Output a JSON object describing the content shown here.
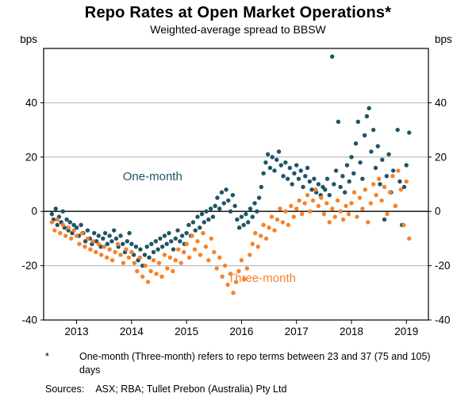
{
  "title": "Repo Rates at Open Market Operations*",
  "subtitle": "Weighted-average spread to BBSW",
  "axis_unit_left": "bps",
  "axis_unit_right": "bps",
  "footnote": {
    "marker": "*",
    "text": "One-month (Three-month) refers to repo terms between 23 and 37 (75 and 105) days",
    "sources_label": "Sources:",
    "sources": "ASX; RBA; Tullet Prebon (Australia) Pty Ltd"
  },
  "chart_data": {
    "type": "scatter",
    "title": "Repo Rates at Open Market Operations*",
    "subtitle": "Weighted-average spread to BBSW",
    "xlabel": "",
    "ylabel": "bps",
    "xlim": [
      2012.4,
      2019.4
    ],
    "ylim": [
      -40,
      60
    ],
    "xticks": [
      2013,
      2014,
      2015,
      2016,
      2017,
      2018,
      2019
    ],
    "yticks": [
      40,
      20,
      0,
      -20,
      -40
    ],
    "grid": true,
    "grid_color": "#b0b0b0",
    "zero_line_color": "#000000",
    "legend_position": "in-plot-annotations",
    "series": [
      {
        "name": "One-month",
        "color": "#1d5566",
        "annotation": {
          "x": 2013.84,
          "y": 11.5
        },
        "points": [
          [
            2012.55,
            -1
          ],
          [
            2012.58,
            -3
          ],
          [
            2012.62,
            1
          ],
          [
            2012.65,
            -5
          ],
          [
            2012.68,
            -2
          ],
          [
            2012.72,
            -4
          ],
          [
            2012.75,
            0
          ],
          [
            2012.78,
            -6
          ],
          [
            2012.82,
            -3
          ],
          [
            2012.85,
            -7
          ],
          [
            2012.88,
            -4
          ],
          [
            2012.92,
            -8
          ],
          [
            2012.95,
            -5
          ],
          [
            2013.0,
            -6
          ],
          [
            2013.04,
            -9
          ],
          [
            2013.08,
            -5
          ],
          [
            2013.12,
            -8
          ],
          [
            2013.16,
            -11
          ],
          [
            2013.2,
            -7
          ],
          [
            2013.24,
            -10
          ],
          [
            2013.28,
            -12
          ],
          [
            2013.32,
            -8
          ],
          [
            2013.36,
            -11
          ],
          [
            2013.4,
            -9
          ],
          [
            2013.44,
            -13
          ],
          [
            2013.48,
            -10
          ],
          [
            2013.52,
            -8
          ],
          [
            2013.56,
            -12
          ],
          [
            2013.6,
            -9
          ],
          [
            2013.64,
            -11
          ],
          [
            2013.68,
            -7
          ],
          [
            2013.72,
            -10
          ],
          [
            2013.76,
            -13
          ],
          [
            2013.8,
            -9
          ],
          [
            2013.84,
            -12
          ],
          [
            2013.88,
            -15
          ],
          [
            2013.92,
            -11
          ],
          [
            2013.96,
            -8
          ],
          [
            2014.0,
            -12
          ],
          [
            2014.04,
            -16
          ],
          [
            2014.08,
            -13
          ],
          [
            2014.12,
            -18
          ],
          [
            2014.16,
            -14
          ],
          [
            2014.2,
            -20
          ],
          [
            2014.24,
            -16
          ],
          [
            2014.28,
            -13
          ],
          [
            2014.32,
            -17
          ],
          [
            2014.36,
            -12
          ],
          [
            2014.4,
            -15
          ],
          [
            2014.44,
            -11
          ],
          [
            2014.48,
            -14
          ],
          [
            2014.52,
            -10
          ],
          [
            2014.56,
            -13
          ],
          [
            2014.6,
            -9
          ],
          [
            2014.64,
            -12
          ],
          [
            2014.68,
            -8
          ],
          [
            2014.72,
            -11
          ],
          [
            2014.76,
            -14
          ],
          [
            2014.8,
            -10
          ],
          [
            2014.84,
            -7
          ],
          [
            2014.88,
            -11
          ],
          [
            2014.92,
            -9
          ],
          [
            2014.96,
            -12
          ],
          [
            2015.0,
            -8
          ],
          [
            2015.04,
            -5
          ],
          [
            2015.08,
            -9
          ],
          [
            2015.12,
            -4
          ],
          [
            2015.16,
            -7
          ],
          [
            2015.2,
            -2
          ],
          [
            2015.24,
            -6
          ],
          [
            2015.28,
            -1
          ],
          [
            2015.32,
            -4
          ],
          [
            2015.36,
            0
          ],
          [
            2015.4,
            -3
          ],
          [
            2015.44,
            1
          ],
          [
            2015.48,
            -2
          ],
          [
            2015.52,
            2
          ],
          [
            2015.56,
            5
          ],
          [
            2015.6,
            1
          ],
          [
            2015.64,
            7
          ],
          [
            2015.68,
            3
          ],
          [
            2015.72,
            8
          ],
          [
            2015.76,
            4
          ],
          [
            2015.8,
            0
          ],
          [
            2015.84,
            6
          ],
          [
            2015.88,
            2
          ],
          [
            2015.92,
            -3
          ],
          [
            2015.96,
            -6
          ],
          [
            2016.0,
            -2
          ],
          [
            2016.04,
            -5
          ],
          [
            2016.08,
            -1
          ],
          [
            2016.12,
            -4
          ],
          [
            2016.16,
            1
          ],
          [
            2016.2,
            -2
          ],
          [
            2016.24,
            3
          ],
          [
            2016.28,
            0
          ],
          [
            2016.32,
            5
          ],
          [
            2016.36,
            9
          ],
          [
            2016.4,
            14
          ],
          [
            2016.44,
            18
          ],
          [
            2016.48,
            21
          ],
          [
            2016.52,
            16
          ],
          [
            2016.56,
            20
          ],
          [
            2016.6,
            15
          ],
          [
            2016.64,
            19
          ],
          [
            2016.68,
            22
          ],
          [
            2016.72,
            17
          ],
          [
            2016.76,
            13
          ],
          [
            2016.8,
            18
          ],
          [
            2016.84,
            12
          ],
          [
            2016.88,
            16
          ],
          [
            2016.92,
            10
          ],
          [
            2016.96,
            14
          ],
          [
            2017.0,
            17
          ],
          [
            2017.04,
            12
          ],
          [
            2017.08,
            15
          ],
          [
            2017.12,
            9
          ],
          [
            2017.16,
            13
          ],
          [
            2017.2,
            16
          ],
          [
            2017.24,
            11
          ],
          [
            2017.28,
            8
          ],
          [
            2017.32,
            12
          ],
          [
            2017.36,
            7
          ],
          [
            2017.4,
            10
          ],
          [
            2017.44,
            6
          ],
          [
            2017.48,
            9
          ],
          [
            2017.52,
            8
          ],
          [
            2017.56,
            12
          ],
          [
            2017.6,
            6
          ],
          [
            2017.65,
            57
          ],
          [
            2017.68,
            10
          ],
          [
            2017.72,
            15
          ],
          [
            2017.76,
            33
          ],
          [
            2017.8,
            9
          ],
          [
            2017.84,
            13
          ],
          [
            2017.88,
            7
          ],
          [
            2017.92,
            17
          ],
          [
            2017.96,
            11
          ],
          [
            2018.0,
            20
          ],
          [
            2018.04,
            14
          ],
          [
            2018.08,
            25
          ],
          [
            2018.12,
            33
          ],
          [
            2018.16,
            18
          ],
          [
            2018.2,
            12
          ],
          [
            2018.24,
            28
          ],
          [
            2018.28,
            35
          ],
          [
            2018.32,
            38
          ],
          [
            2018.36,
            22
          ],
          [
            2018.4,
            30
          ],
          [
            2018.44,
            16
          ],
          [
            2018.48,
            24
          ],
          [
            2018.52,
            10
          ],
          [
            2018.56,
            19
          ],
          [
            2018.6,
            -3
          ],
          [
            2018.64,
            13
          ],
          [
            2018.68,
            21
          ],
          [
            2018.72,
            7
          ],
          [
            2018.76,
            15
          ],
          [
            2018.8,
            2
          ],
          [
            2018.84,
            30
          ],
          [
            2018.88,
            11
          ],
          [
            2018.92,
            -5
          ],
          [
            2018.96,
            9
          ],
          [
            2019.0,
            17
          ],
          [
            2019.05,
            29
          ]
        ]
      },
      {
        "name": "Three-month",
        "color": "#f6822a",
        "annotation": {
          "x": 2015.75,
          "y": -26
        },
        "points": [
          [
            2012.55,
            -4
          ],
          [
            2012.6,
            -7
          ],
          [
            2012.65,
            -3
          ],
          [
            2012.7,
            -8
          ],
          [
            2012.75,
            -5
          ],
          [
            2012.8,
            -9
          ],
          [
            2012.85,
            -6
          ],
          [
            2012.9,
            -10
          ],
          [
            2012.95,
            -7
          ],
          [
            2013.0,
            -9
          ],
          [
            2013.05,
            -12
          ],
          [
            2013.1,
            -8
          ],
          [
            2013.15,
            -13
          ],
          [
            2013.2,
            -10
          ],
          [
            2013.25,
            -14
          ],
          [
            2013.3,
            -11
          ],
          [
            2013.35,
            -15
          ],
          [
            2013.4,
            -12
          ],
          [
            2013.45,
            -16
          ],
          [
            2013.5,
            -13
          ],
          [
            2013.55,
            -17
          ],
          [
            2013.6,
            -14
          ],
          [
            2013.65,
            -18
          ],
          [
            2013.7,
            -15
          ],
          [
            2013.75,
            -12
          ],
          [
            2013.8,
            -16
          ],
          [
            2013.85,
            -19
          ],
          [
            2013.9,
            -14
          ],
          [
            2013.95,
            -17
          ],
          [
            2014.0,
            -15
          ],
          [
            2014.05,
            -19
          ],
          [
            2014.1,
            -22
          ],
          [
            2014.15,
            -17
          ],
          [
            2014.2,
            -24
          ],
          [
            2014.25,
            -20
          ],
          [
            2014.3,
            -26
          ],
          [
            2014.35,
            -22
          ],
          [
            2014.4,
            -18
          ],
          [
            2014.45,
            -23
          ],
          [
            2014.5,
            -19
          ],
          [
            2014.55,
            -24
          ],
          [
            2014.6,
            -16
          ],
          [
            2014.65,
            -21
          ],
          [
            2014.7,
            -17
          ],
          [
            2014.75,
            -22
          ],
          [
            2014.8,
            -18
          ],
          [
            2014.85,
            -14
          ],
          [
            2014.9,
            -19
          ],
          [
            2014.95,
            -15
          ],
          [
            2015.0,
            -12
          ],
          [
            2015.05,
            -17
          ],
          [
            2015.1,
            -9
          ],
          [
            2015.15,
            -14
          ],
          [
            2015.2,
            -11
          ],
          [
            2015.25,
            -16
          ],
          [
            2015.3,
            -8
          ],
          [
            2015.35,
            -13
          ],
          [
            2015.4,
            -18
          ],
          [
            2015.45,
            -10
          ],
          [
            2015.5,
            -15
          ],
          [
            2015.55,
            -21
          ],
          [
            2015.6,
            -17
          ],
          [
            2015.65,
            -24
          ],
          [
            2015.7,
            -20
          ],
          [
            2015.75,
            -27
          ],
          [
            2015.8,
            -23
          ],
          [
            2015.85,
            -30
          ],
          [
            2015.9,
            -26
          ],
          [
            2015.95,
            -22
          ],
          [
            2016.0,
            -18
          ],
          [
            2016.05,
            -25
          ],
          [
            2016.1,
            -21
          ],
          [
            2016.15,
            -16
          ],
          [
            2016.2,
            -12
          ],
          [
            2016.25,
            -8
          ],
          [
            2016.3,
            -13
          ],
          [
            2016.35,
            -9
          ],
          [
            2016.4,
            -5
          ],
          [
            2016.45,
            -10
          ],
          [
            2016.5,
            -6
          ],
          [
            2016.55,
            -2
          ],
          [
            2016.6,
            -7
          ],
          [
            2016.65,
            -3
          ],
          [
            2016.7,
            1
          ],
          [
            2016.75,
            -4
          ],
          [
            2016.8,
            0
          ],
          [
            2016.85,
            -5
          ],
          [
            2016.9,
            2
          ],
          [
            2016.95,
            -2
          ],
          [
            2017.0,
            1
          ],
          [
            2017.05,
            4
          ],
          [
            2017.1,
            -1
          ],
          [
            2017.15,
            3
          ],
          [
            2017.2,
            6
          ],
          [
            2017.25,
            0
          ],
          [
            2017.3,
            4
          ],
          [
            2017.35,
            8
          ],
          [
            2017.4,
            2
          ],
          [
            2017.45,
            5
          ],
          [
            2017.5,
            -1
          ],
          [
            2017.55,
            3
          ],
          [
            2017.6,
            -4
          ],
          [
            2017.65,
            1
          ],
          [
            2017.7,
            -2
          ],
          [
            2017.75,
            4
          ],
          [
            2017.8,
            0
          ],
          [
            2017.85,
            -3
          ],
          [
            2017.9,
            2
          ],
          [
            2017.95,
            -1
          ],
          [
            2018.0,
            3
          ],
          [
            2018.05,
            7
          ],
          [
            2018.1,
            -2
          ],
          [
            2018.15,
            5
          ],
          [
            2018.2,
            1
          ],
          [
            2018.25,
            8
          ],
          [
            2018.3,
            -4
          ],
          [
            2018.35,
            3
          ],
          [
            2018.4,
            10
          ],
          [
            2018.45,
            6
          ],
          [
            2018.5,
            12
          ],
          [
            2018.55,
            4
          ],
          [
            2018.6,
            9
          ],
          [
            2018.65,
            -1
          ],
          [
            2018.7,
            7
          ],
          [
            2018.75,
            13
          ],
          [
            2018.8,
            2
          ],
          [
            2018.85,
            15
          ],
          [
            2018.9,
            8
          ],
          [
            2018.95,
            -5
          ],
          [
            2019.0,
            11
          ],
          [
            2019.05,
            -10
          ]
        ]
      }
    ]
  }
}
